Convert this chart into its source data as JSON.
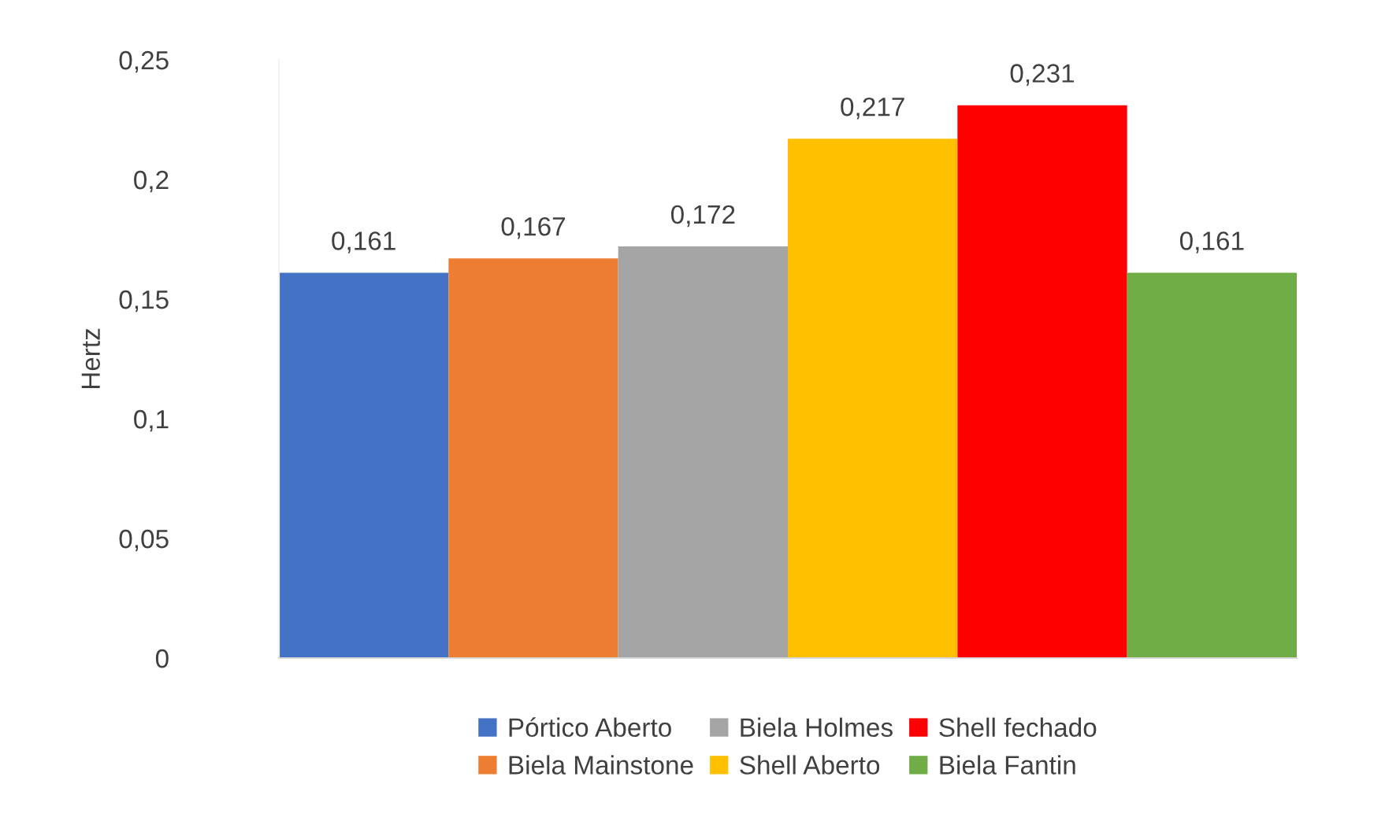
{
  "chart_data": {
    "type": "bar",
    "ylabel": "Hertz",
    "categories": [
      null
    ],
    "series": [
      {
        "name": "Pórtico Aberto",
        "color": "#4472c4",
        "values": [
          0.161
        ],
        "value_labels": [
          "0,161"
        ]
      },
      {
        "name": "Biela Mainstone",
        "color": "#ed7d31",
        "values": [
          0.167
        ],
        "value_labels": [
          "0,167"
        ]
      },
      {
        "name": "Biela Holmes",
        "color": "#a5a5a5",
        "values": [
          0.172
        ],
        "value_labels": [
          "0,172"
        ]
      },
      {
        "name": "Shell Aberto",
        "color": "#ffc000",
        "values": [
          0.217
        ],
        "value_labels": [
          "0,217"
        ]
      },
      {
        "name": "Shell fechado",
        "color": "#ff0000",
        "values": [
          0.231
        ],
        "value_labels": [
          "0,231"
        ]
      },
      {
        "name": "Biela Fantin",
        "color": "#70ad47",
        "values": [
          0.161
        ],
        "value_labels": [
          "0,161"
        ]
      }
    ],
    "ylim": [
      0,
      0.25
    ],
    "yticks": [
      0,
      {
        "value": 0.05,
        "label": "0,05"
      },
      {
        "value": 0.1,
        "label": "0,1"
      },
      {
        "value": 0.15,
        "label": "0,15"
      },
      {
        "value": 0.2,
        "label": "0,2"
      },
      {
        "value": 0.25,
        "label": "0,25"
      }
    ],
    "grid": false,
    "legend": "bottom"
  }
}
